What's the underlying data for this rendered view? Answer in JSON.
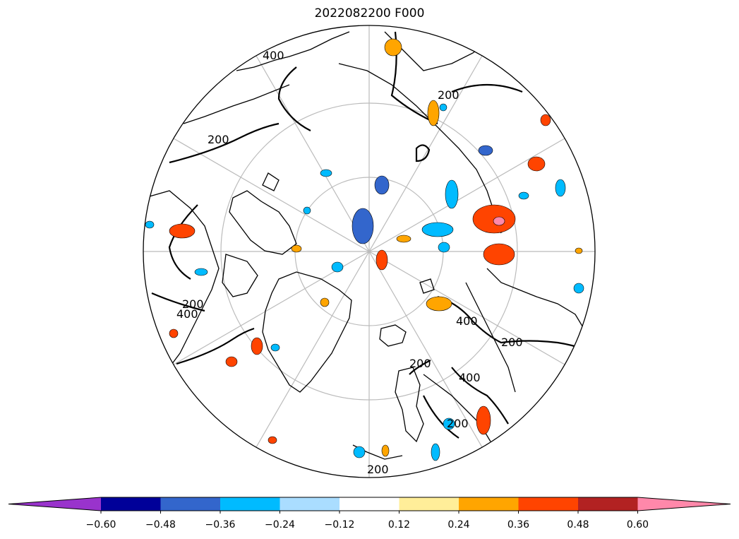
{
  "title": "2022082200 F000",
  "colorbar": {
    "extend": "both",
    "colors": [
      "#9933cc",
      "#000099",
      "#3366cc",
      "#00bbff",
      "#aaddff",
      "#ffffff",
      "#ffee99",
      "#ffa500",
      "#ff4400",
      "#b22222",
      "#ff88aa"
    ],
    "ticks": [
      "−0.60",
      "−0.48",
      "−0.36",
      "−0.24",
      "−0.12",
      "0.12",
      "0.24",
      "0.36",
      "0.48",
      "0.60"
    ]
  },
  "contour_labels": [
    "400",
    "200",
    "200",
    "400",
    "400",
    "200",
    "200",
    "200",
    "400",
    "200",
    "200"
  ],
  "projection": "north-polar-stereographic"
}
